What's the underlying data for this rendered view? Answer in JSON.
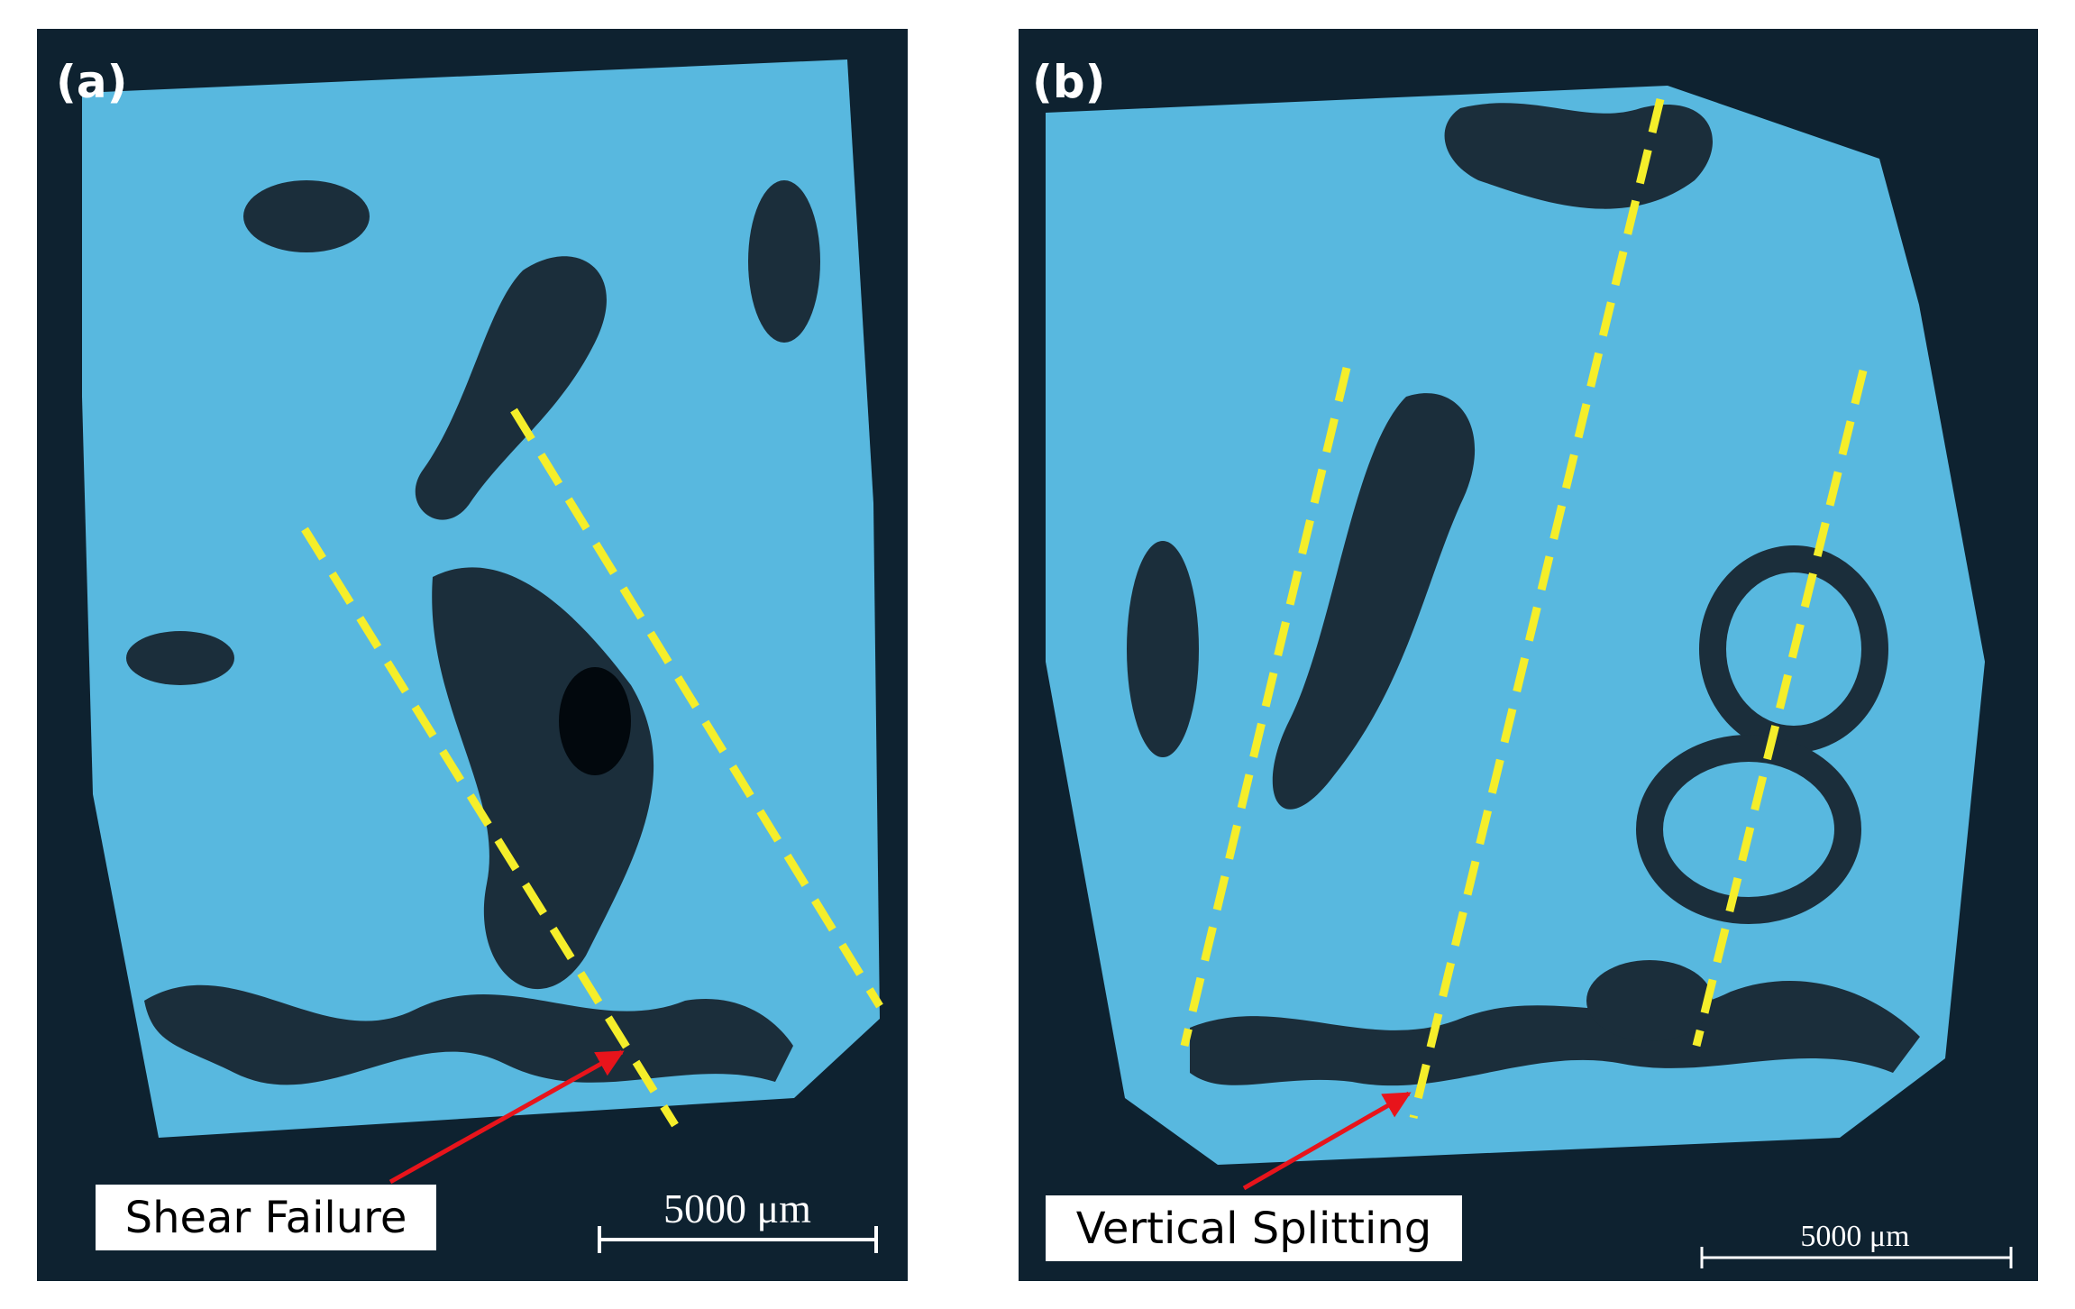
{
  "panels": [
    {
      "label": "(a)",
      "annotation": "Shear Failure",
      "scale_bar": "5000 μm"
    },
    {
      "label": "(b)",
      "annotation": "Vertical Splitting",
      "scale_bar": "5000 μm"
    }
  ]
}
